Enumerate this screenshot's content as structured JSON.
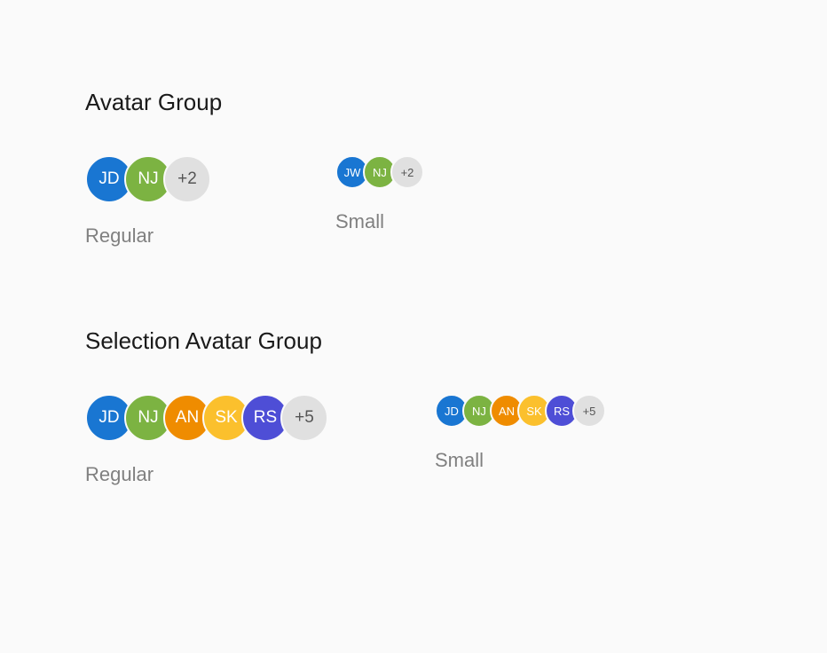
{
  "background_color": "#fafafa",
  "colors": {
    "blue": "#1976d2",
    "green": "#7cb342",
    "orange": "#ef8c00",
    "yellow": "#fbc02d",
    "purple": "#4e4ed6",
    "overflow_bg": "#e0e0e0",
    "overflow_text": "#555555",
    "title_text": "#1a1a1a",
    "label_text": "#808080"
  },
  "sections": [
    {
      "title": "Avatar Group",
      "groups": [
        {
          "label": "Regular",
          "size": "regular",
          "avatars": [
            {
              "initials": "JD",
              "color": "#1976d2"
            },
            {
              "initials": "NJ",
              "color": "#7cb342"
            }
          ],
          "overflow": "+2"
        },
        {
          "label": "Small",
          "size": "small",
          "avatars": [
            {
              "initials": "JW",
              "color": "#1976d2"
            },
            {
              "initials": "NJ",
              "color": "#7cb342"
            }
          ],
          "overflow": "+2"
        }
      ]
    },
    {
      "title": "Selection Avatar Group",
      "groups": [
        {
          "label": "Regular",
          "size": "regular",
          "avatars": [
            {
              "initials": "JD",
              "color": "#1976d2"
            },
            {
              "initials": "NJ",
              "color": "#7cb342"
            },
            {
              "initials": "AN",
              "color": "#ef8c00"
            },
            {
              "initials": "SK",
              "color": "#fbc02d"
            },
            {
              "initials": "RS",
              "color": "#4e4ed6"
            }
          ],
          "overflow": "+5"
        },
        {
          "label": "Small",
          "size": "small",
          "avatars": [
            {
              "initials": "JD",
              "color": "#1976d2"
            },
            {
              "initials": "NJ",
              "color": "#7cb342"
            },
            {
              "initials": "AN",
              "color": "#ef8c00"
            },
            {
              "initials": "SK",
              "color": "#fbc02d"
            },
            {
              "initials": "RS",
              "color": "#4e4ed6"
            }
          ],
          "overflow": "+5"
        }
      ]
    }
  ]
}
